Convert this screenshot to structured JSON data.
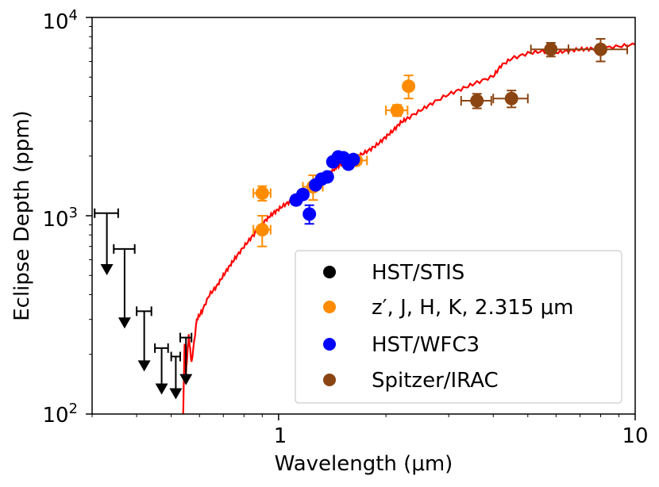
{
  "chart_data": {
    "type": "scatter",
    "xlabel": "Wavelength (μm)",
    "ylabel": "Eclipse Depth (ppm)",
    "xscale": "log",
    "yscale": "log",
    "xlim": [
      0.3,
      10
    ],
    "ylim": [
      100,
      10000
    ],
    "x_ticks": [
      {
        "value": 1,
        "label": "1"
      },
      {
        "value": 10,
        "label": "10"
      }
    ],
    "y_ticks": [
      {
        "value": 100,
        "base": "10",
        "exp": "2"
      },
      {
        "value": 1000,
        "base": "10",
        "exp": "3"
      },
      {
        "value": 10000,
        "base": "10",
        "exp": "4"
      }
    ],
    "legend_position": "lower-right",
    "model": {
      "color": "#ff0000",
      "points": [
        [
          0.54,
          100
        ],
        [
          0.545,
          230
        ],
        [
          0.55,
          160
        ],
        [
          0.56,
          250
        ],
        [
          0.57,
          180
        ],
        [
          0.59,
          300
        ],
        [
          0.61,
          330
        ],
        [
          0.64,
          400
        ],
        [
          0.67,
          440
        ],
        [
          0.7,
          500
        ],
        [
          0.73,
          560
        ],
        [
          0.76,
          620
        ],
        [
          0.8,
          700
        ],
        [
          0.84,
          780
        ],
        [
          0.88,
          860
        ],
        [
          0.92,
          950
        ],
        [
          0.96,
          1020
        ],
        [
          1.0,
          1080
        ],
        [
          1.05,
          1150
        ],
        [
          1.1,
          1200
        ],
        [
          1.15,
          1260
        ],
        [
          1.2,
          1330
        ],
        [
          1.25,
          1400
        ],
        [
          1.3,
          1480
        ],
        [
          1.35,
          1560
        ],
        [
          1.4,
          1650
        ],
        [
          1.45,
          1750
        ],
        [
          1.5,
          1830
        ],
        [
          1.6,
          1930
        ],
        [
          1.7,
          2030
        ],
        [
          1.8,
          2150
        ],
        [
          1.9,
          2300
        ],
        [
          2.0,
          2500
        ],
        [
          2.1,
          2700
        ],
        [
          2.2,
          2950
        ],
        [
          2.3,
          3100
        ],
        [
          2.5,
          3400
        ],
        [
          2.7,
          3700
        ],
        [
          3.0,
          4100
        ],
        [
          3.3,
          4400
        ],
        [
          3.6,
          4700
        ],
        [
          4.0,
          5050
        ],
        [
          4.2,
          5700
        ],
        [
          4.5,
          6200
        ],
        [
          5.0,
          6600
        ],
        [
          5.5,
          6750
        ],
        [
          6.0,
          6650
        ],
        [
          6.5,
          6800
        ],
        [
          7.0,
          6900
        ],
        [
          7.5,
          6950
        ],
        [
          8.0,
          7000
        ],
        [
          9.0,
          7150
        ],
        [
          10.0,
          7300
        ]
      ]
    },
    "series": [
      {
        "name": "HST/STIS",
        "color": "#000000",
        "upper_limits": [
          {
            "x": 0.33,
            "xerr": 0.025,
            "y": 1030,
            "arrow_to": 520
          },
          {
            "x": 0.37,
            "xerr": 0.025,
            "y": 680,
            "arrow_to": 280
          },
          {
            "x": 0.42,
            "xerr": 0.02,
            "y": 330,
            "arrow_to": 170
          },
          {
            "x": 0.47,
            "xerr": 0.02,
            "y": 215,
            "arrow_to": 130
          },
          {
            "x": 0.515,
            "xerr": 0.015,
            "y": 195,
            "arrow_to": 123
          },
          {
            "x": 0.55,
            "xerr": 0.02,
            "y": 243,
            "arrow_to": 145
          }
        ]
      },
      {
        "name": "z′, J, H, K, 2.315 μm",
        "color": "#ff8c00",
        "points": [
          {
            "x": 0.9,
            "xerr": 0.05,
            "y": 1300,
            "yerr": 110
          },
          {
            "x": 0.9,
            "xerr": 0.05,
            "y": 850,
            "yerr": 150
          },
          {
            "x": 1.25,
            "xerr": 0.08,
            "y": 1400,
            "yerr": 200
          },
          {
            "x": 1.65,
            "xerr": 0.12,
            "y": 1900,
            "yerr": 100
          },
          {
            "x": 2.15,
            "xerr": 0.15,
            "y": 3400,
            "yerr": 220
          },
          {
            "x": 2.315,
            "xerr": 0.04,
            "y": 4500,
            "yerr": 600
          }
        ]
      },
      {
        "name": "HST/WFC3",
        "color": "#0000ff",
        "points": [
          {
            "x": 1.12,
            "y": 1200,
            "yerr": 60
          },
          {
            "x": 1.17,
            "y": 1280,
            "yerr": 60
          },
          {
            "x": 1.22,
            "y": 1020,
            "yerr": 110
          },
          {
            "x": 1.27,
            "y": 1430,
            "yerr": 60
          },
          {
            "x": 1.32,
            "y": 1530,
            "yerr": 60
          },
          {
            "x": 1.37,
            "y": 1570,
            "yerr": 70
          },
          {
            "x": 1.42,
            "y": 1870,
            "yerr": 80
          },
          {
            "x": 1.47,
            "y": 1980,
            "yerr": 80
          },
          {
            "x": 1.52,
            "y": 1960,
            "yerr": 80
          },
          {
            "x": 1.57,
            "y": 1820,
            "yerr": 90
          },
          {
            "x": 1.62,
            "y": 1920,
            "yerr": 100
          }
        ]
      },
      {
        "name": "Spitzer/IRAC",
        "color": "#8b4513",
        "points": [
          {
            "x": 3.6,
            "xerr": 0.35,
            "y": 3800,
            "yerr": 320
          },
          {
            "x": 4.5,
            "xerr": 0.5,
            "y": 3900,
            "yerr": 380
          },
          {
            "x": 5.8,
            "xerr": 0.7,
            "y": 6900,
            "yerr": 550
          },
          {
            "x": 8.0,
            "xerr": 1.5,
            "y": 6900,
            "yerr": 900
          }
        ]
      }
    ]
  }
}
